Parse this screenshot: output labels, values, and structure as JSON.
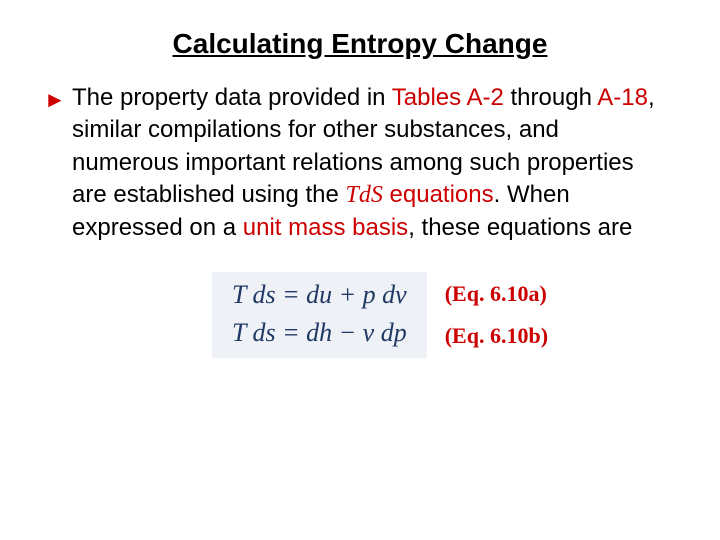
{
  "title": "Calculating Entropy Change",
  "paragraph": {
    "part1": "The property data provided in ",
    "tablesA2": "Tables A-2",
    "part2": " through ",
    "a18": "A-18",
    "part3": ", similar compilations for other substances, and numerous important relations among such properties are established using the ",
    "tds_italic": "TdS",
    "tds_rest": " equations",
    "part4": ".  When expressed on a ",
    "unitmass": "unit mass basis",
    "part5": ", these equations are"
  },
  "equations": {
    "eq1": "T ds = du + p dv",
    "eq2": "T ds = dh − v dp",
    "label1": "(Eq. 6.10a)",
    "label2": "(Eq. 6.10b)",
    "box_bg": "#eef1f6",
    "eq_color": "#203864",
    "label_color": "#cc0000"
  },
  "colors": {
    "red": "#cc0000",
    "black": "#000000",
    "background": "#ffffff"
  },
  "typography": {
    "title_fontsize": 28,
    "body_fontsize": 24,
    "eq_fontsize": 26,
    "label_fontsize": 22
  }
}
